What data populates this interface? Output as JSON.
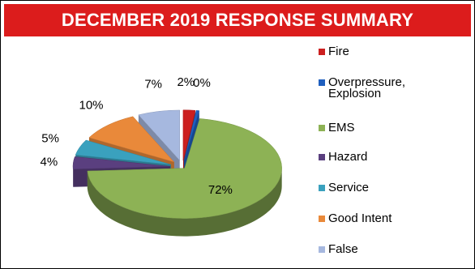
{
  "title": "DECEMBER 2019 RESPONSE SUMMARY",
  "colors": {
    "banner": "#dc1c1c"
  },
  "chart_data": {
    "type": "pie",
    "title": "DECEMBER 2019 RESPONSE SUMMARY",
    "style": "3d-exploded",
    "legend_position": "right",
    "series": [
      {
        "name": "Fire",
        "value": 2,
        "label": "2%",
        "color": "#cc1f1f"
      },
      {
        "name": "Overpressure, Explosion",
        "value": 0.5,
        "label": "0%",
        "color": "#1f5fbf"
      },
      {
        "name": "EMS",
        "value": 72,
        "label": "72%",
        "color": "#8db255"
      },
      {
        "name": "Hazard",
        "value": 4,
        "label": "4%",
        "color": "#5a3f7f"
      },
      {
        "name": "Service",
        "value": 5,
        "label": "5%",
        "color": "#3aa1be"
      },
      {
        "name": "Good Intent",
        "value": 10,
        "label": "10%",
        "color": "#e9893a"
      },
      {
        "name": "False",
        "value": 7,
        "label": "7%",
        "color": "#a6b8df"
      }
    ]
  }
}
